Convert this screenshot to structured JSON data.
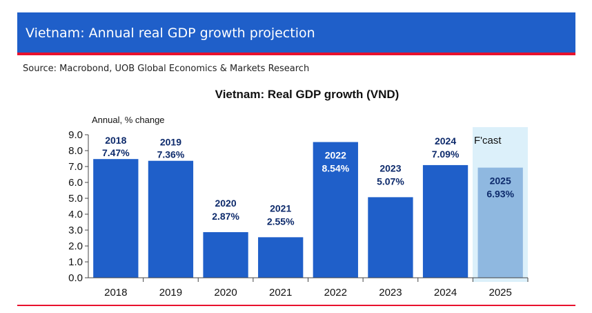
{
  "header": {
    "title": "Vietnam: Annual real GDP growth projection"
  },
  "source": "Source: Macrobond, UOB Global Economics & Markets Research",
  "colors": {
    "header_bg": "#1f5fc9",
    "accent_line": "#e8112d",
    "bar": "#1f5fc9",
    "bar_forecast": "#8fb8e0",
    "forecast_band": "#dcf0fa",
    "label_on_bar": "#ffffff",
    "label_outside": "#0d2a6b"
  },
  "chart_data": {
    "type": "bar",
    "title": "Vietnam: Real GDP growth (VND)",
    "ylabel": "Annual, % change",
    "xlabel": "",
    "ylim": [
      0,
      9
    ],
    "yticks": [
      "0.0",
      "1.0",
      "2.0",
      "3.0",
      "4.0",
      "5.0",
      "6.0",
      "7.0",
      "8.0",
      "9.0"
    ],
    "categories": [
      "2018",
      "2019",
      "2020",
      "2021",
      "2022",
      "2023",
      "2024",
      "2025"
    ],
    "values": [
      7.47,
      7.36,
      2.87,
      2.55,
      8.54,
      5.07,
      7.09,
      6.93
    ],
    "data_labels": [
      {
        "year": "2018",
        "value": "7.47%"
      },
      {
        "year": "2019",
        "value": "7.36%"
      },
      {
        "year": "2020",
        "value": "2.87%"
      },
      {
        "year": "2021",
        "value": "2.55%"
      },
      {
        "year": "2022",
        "value": "8.54%"
      },
      {
        "year": "2023",
        "value": "5.07%"
      },
      {
        "year": "2024",
        "value": "7.09%"
      },
      {
        "year": "2025",
        "value": "6.93%"
      }
    ],
    "forecast": {
      "category": "2025",
      "label": "F'cast"
    },
    "grid": false,
    "legend": "none"
  }
}
